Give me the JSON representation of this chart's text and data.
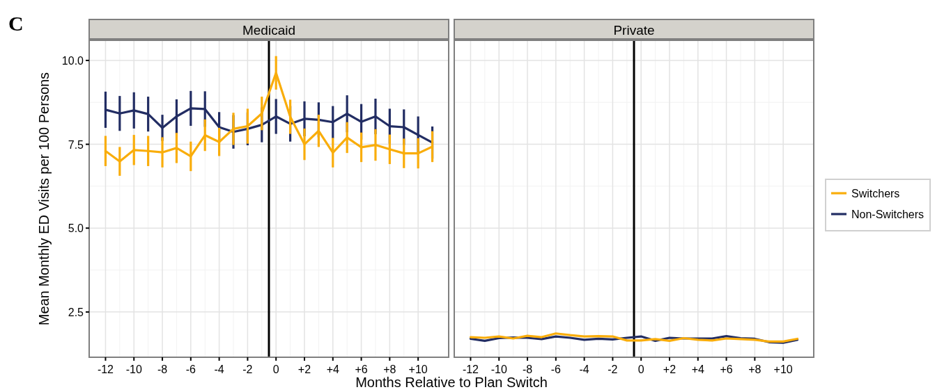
{
  "chart_data": [
    {
      "type": "line",
      "title": "Medicaid",
      "ylabel": "Mean Monthly ED Visits per 100 Persons",
      "xlabel": "Months Relative to Plan Switch",
      "annotations": [
        "C"
      ],
      "x": [
        -12,
        -11,
        -10,
        -9,
        -8,
        -7,
        -6,
        -5,
        -4,
        -3,
        -2,
        -1,
        0,
        1,
        2,
        3,
        4,
        5,
        6,
        7,
        8,
        9,
        10,
        11
      ],
      "xlim": [
        -13.15,
        12.15
      ],
      "ylim": [
        1.15,
        10.6
      ],
      "xticks": [
        {
          "value": -12,
          "label": "-12"
        },
        {
          "value": -10,
          "label": "-10"
        },
        {
          "value": -8,
          "label": "-8"
        },
        {
          "value": -6,
          "label": "-6"
        },
        {
          "value": -4,
          "label": "-4"
        },
        {
          "value": -2,
          "label": "-2"
        },
        0,
        {
          "value": 2,
          "label": "+2"
        },
        {
          "value": 4,
          "label": "+4"
        },
        {
          "value": 6,
          "label": "+6"
        },
        {
          "value": 8,
          "label": "+8"
        },
        {
          "value": 10,
          "label": "+10"
        }
      ],
      "yticks": [
        {
          "value": 2.5,
          "label": "2.5"
        },
        {
          "value": 5,
          "label": "5.0"
        },
        {
          "value": 7.5,
          "label": "7.5"
        },
        {
          "value": 10,
          "label": "10.0"
        }
      ],
      "grid": true,
      "marker": "none",
      "line_style": "solid",
      "ref_lines": [
        {
          "axis": "x",
          "value": -0.5,
          "color": "#000000"
        }
      ],
      "series": [
        {
          "color": "#222d63",
          "values": [
            8.53,
            8.42,
            8.51,
            8.4,
            7.99,
            8.33,
            8.57,
            8.55,
            8.01,
            7.87,
            7.96,
            8.08,
            8.33,
            8.11,
            8.26,
            8.23,
            8.16,
            8.41,
            8.17,
            8.33,
            8.04,
            8.01,
            7.78,
            7.55
          ],
          "errors": [
            0.54,
            0.52,
            0.54,
            0.52,
            0.39,
            0.51,
            0.52,
            0.53,
            0.45,
            0.5,
            0.49,
            0.52,
            0.52,
            0.53,
            0.52,
            0.52,
            0.48,
            0.55,
            0.53,
            0.53,
            0.52,
            0.53,
            0.55,
            0.48
          ]
        },
        {
          "color": "#f9ad0b",
          "values": [
            7.3,
            6.99,
            7.33,
            7.3,
            7.26,
            7.39,
            7.14,
            7.77,
            7.57,
            7.96,
            8.04,
            8.42,
            9.63,
            8.32,
            7.5,
            7.9,
            7.25,
            7.7,
            7.41,
            7.48,
            7.35,
            7.23,
            7.23,
            7.43
          ],
          "errors": [
            0.45,
            0.43,
            0.45,
            0.45,
            0.45,
            0.45,
            0.44,
            0.47,
            0.42,
            0.48,
            0.52,
            0.5,
            0.5,
            0.51,
            0.47,
            0.48,
            0.44,
            0.46,
            0.44,
            0.47,
            0.44,
            0.44,
            0.45,
            0.46
          ]
        }
      ]
    },
    {
      "type": "line",
      "title": "Private",
      "tick_labels": "x",
      "x": [
        -12,
        -11,
        -10,
        -9,
        -8,
        -7,
        -6,
        -5,
        -4,
        -3,
        -2,
        -1,
        0,
        1,
        2,
        3,
        4,
        5,
        6,
        7,
        8,
        9,
        10,
        11
      ],
      "xlim": [
        -13.15,
        12.15
      ],
      "ylim": [
        1.15,
        10.6
      ],
      "xticks": [
        {
          "value": -12,
          "label": "-12"
        },
        {
          "value": -10,
          "label": "-10"
        },
        {
          "value": -8,
          "label": "-8"
        },
        {
          "value": -6,
          "label": "-6"
        },
        {
          "value": -4,
          "label": "-4"
        },
        {
          "value": -2,
          "label": "-2"
        },
        0,
        {
          "value": 2,
          "label": "+2"
        },
        {
          "value": 4,
          "label": "+4"
        },
        {
          "value": 6,
          "label": "+6"
        },
        {
          "value": 8,
          "label": "+8"
        },
        {
          "value": 10,
          "label": "+10"
        }
      ],
      "yticks": [
        {
          "value": 2.5,
          "label": null
        },
        {
          "value": 5,
          "label": null
        },
        {
          "value": 7.5,
          "label": null
        },
        {
          "value": 10,
          "label": null
        }
      ],
      "grid": true,
      "marker": "none",
      "line_style": "solid",
      "legend": "right",
      "ref_lines": [
        {
          "axis": "x",
          "value": -0.5,
          "color": "#000000"
        }
      ],
      "series": [
        {
          "name": "Non-Switchers",
          "color": "#222d63",
          "values": [
            1.7,
            1.64,
            1.72,
            1.74,
            1.73,
            1.69,
            1.77,
            1.73,
            1.67,
            1.7,
            1.68,
            1.73,
            1.77,
            1.64,
            1.73,
            1.71,
            1.71,
            1.71,
            1.78,
            1.72,
            1.7,
            1.6,
            1.58,
            1.67
          ]
        },
        {
          "name": "Switchers",
          "color": "#f9ad0b",
          "values": [
            1.75,
            1.73,
            1.77,
            1.71,
            1.79,
            1.75,
            1.86,
            1.81,
            1.77,
            1.78,
            1.77,
            1.65,
            1.65,
            1.69,
            1.64,
            1.72,
            1.67,
            1.65,
            1.71,
            1.69,
            1.67,
            1.62,
            1.62,
            1.7
          ]
        }
      ]
    }
  ]
}
